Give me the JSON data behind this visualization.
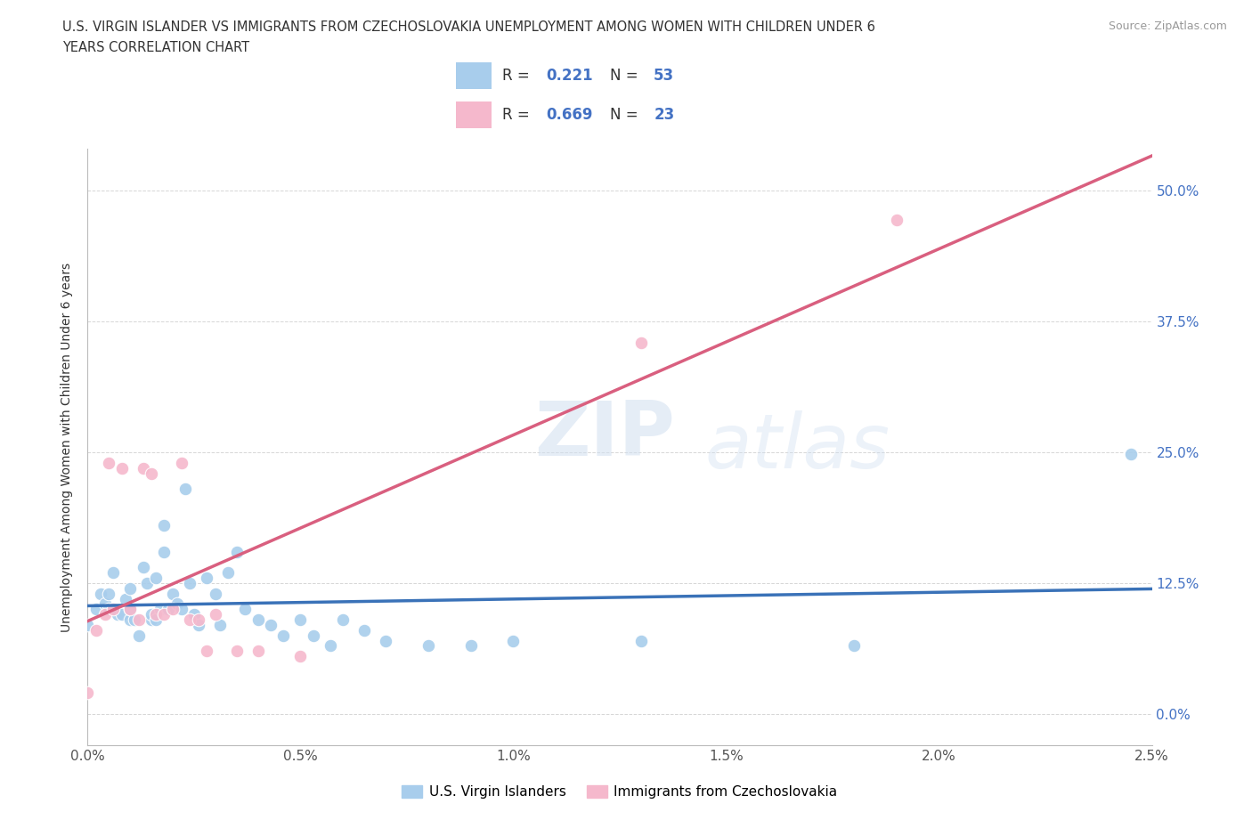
{
  "title_line1": "U.S. VIRGIN ISLANDER VS IMMIGRANTS FROM CZECHOSLOVAKIA UNEMPLOYMENT AMONG WOMEN WITH CHILDREN UNDER 6",
  "title_line2": "YEARS CORRELATION CHART",
  "source": "Source: ZipAtlas.com",
  "ylabel": "Unemployment Among Women with Children Under 6 years",
  "xlim": [
    0.0,
    0.025
  ],
  "ylim": [
    -0.03,
    0.54
  ],
  "yticks": [
    0.0,
    0.125,
    0.25,
    0.375,
    0.5
  ],
  "ytick_labels": [
    "0.0%",
    "12.5%",
    "25.0%",
    "37.5%",
    "50.0%"
  ],
  "xtick_labels": [
    "0.0%",
    "0.5%",
    "1.0%",
    "1.5%",
    "2.0%",
    "2.5%"
  ],
  "blue_color": "#A8CDEC",
  "pink_color": "#F5B8CC",
  "blue_line_color": "#3A72B8",
  "pink_line_color": "#D95F7F",
  "tick_label_color": "#4472C4",
  "R_blue": 0.221,
  "N_blue": 53,
  "R_pink": 0.669,
  "N_pink": 23,
  "legend_label_blue": "U.S. Virgin Islanders",
  "legend_label_pink": "Immigrants from Czechoslovakia",
  "watermark_top": "ZIP",
  "watermark_bot": "atlas",
  "background_color": "#FFFFFF",
  "grid_color": "#CCCCCC",
  "blue_scatter_x": [
    0.0,
    0.0002,
    0.0003,
    0.0004,
    0.0005,
    0.0005,
    0.0006,
    0.0007,
    0.0008,
    0.0009,
    0.001,
    0.001,
    0.001,
    0.0011,
    0.0012,
    0.0013,
    0.0014,
    0.0015,
    0.0015,
    0.0016,
    0.0016,
    0.0017,
    0.0018,
    0.0018,
    0.0019,
    0.002,
    0.0021,
    0.0022,
    0.0023,
    0.0024,
    0.0025,
    0.0026,
    0.0028,
    0.003,
    0.0031,
    0.0033,
    0.0035,
    0.0037,
    0.004,
    0.0043,
    0.0046,
    0.005,
    0.0053,
    0.0057,
    0.006,
    0.0065,
    0.007,
    0.008,
    0.009,
    0.01,
    0.013,
    0.018,
    0.0245
  ],
  "blue_scatter_y": [
    0.085,
    0.1,
    0.115,
    0.105,
    0.1,
    0.115,
    0.135,
    0.095,
    0.095,
    0.11,
    0.09,
    0.1,
    0.12,
    0.09,
    0.075,
    0.14,
    0.125,
    0.09,
    0.095,
    0.09,
    0.13,
    0.1,
    0.155,
    0.18,
    0.1,
    0.115,
    0.105,
    0.1,
    0.215,
    0.125,
    0.095,
    0.085,
    0.13,
    0.115,
    0.085,
    0.135,
    0.155,
    0.1,
    0.09,
    0.085,
    0.075,
    0.09,
    0.075,
    0.065,
    0.09,
    0.08,
    0.07,
    0.065,
    0.065,
    0.07,
    0.07,
    0.065,
    0.248
  ],
  "pink_scatter_x": [
    0.0,
    0.0002,
    0.0004,
    0.0005,
    0.0006,
    0.0008,
    0.001,
    0.0012,
    0.0013,
    0.0015,
    0.0016,
    0.0018,
    0.002,
    0.0022,
    0.0024,
    0.0026,
    0.0028,
    0.003,
    0.0035,
    0.004,
    0.005,
    0.013,
    0.019
  ],
  "pink_scatter_y": [
    0.02,
    0.08,
    0.095,
    0.24,
    0.1,
    0.235,
    0.1,
    0.09,
    0.235,
    0.23,
    0.095,
    0.095,
    0.1,
    0.24,
    0.09,
    0.09,
    0.06,
    0.095,
    0.06,
    0.06,
    0.055,
    0.355,
    0.472
  ]
}
